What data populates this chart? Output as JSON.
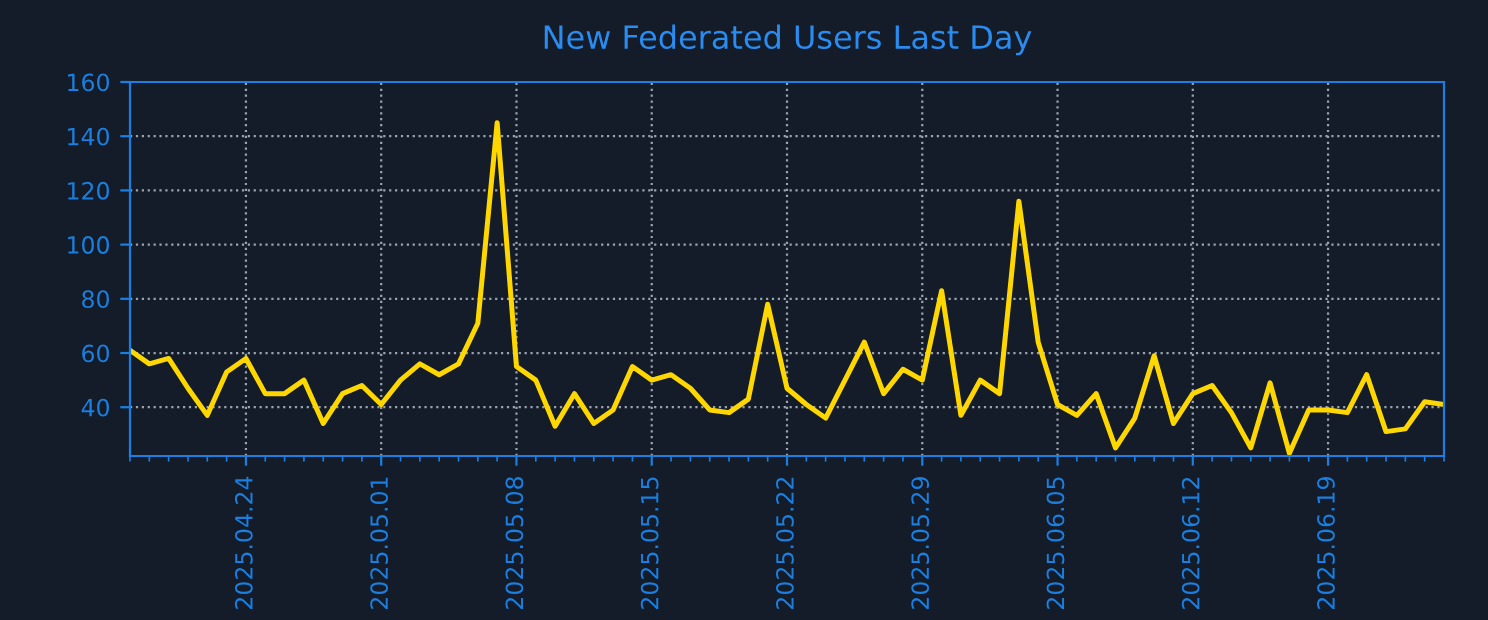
{
  "chart_data": {
    "type": "line",
    "title": "New Federated Users Last Day",
    "x": [
      "2025-04-18",
      "2025-04-19",
      "2025-04-20",
      "2025-04-21",
      "2025-04-22",
      "2025-04-23",
      "2025-04-24",
      "2025-04-25",
      "2025-04-26",
      "2025-04-27",
      "2025-04-28",
      "2025-04-29",
      "2025-04-30",
      "2025-05-01",
      "2025-05-02",
      "2025-05-03",
      "2025-05-04",
      "2025-05-05",
      "2025-05-06",
      "2025-05-07",
      "2025-05-08",
      "2025-05-09",
      "2025-05-10",
      "2025-05-11",
      "2025-05-12",
      "2025-05-13",
      "2025-05-14",
      "2025-05-15",
      "2025-05-16",
      "2025-05-17",
      "2025-05-18",
      "2025-05-19",
      "2025-05-20",
      "2025-05-21",
      "2025-05-22",
      "2025-05-23",
      "2025-05-24",
      "2025-05-25",
      "2025-05-26",
      "2025-05-27",
      "2025-05-28",
      "2025-05-29",
      "2025-05-30",
      "2025-05-31",
      "2025-06-01",
      "2025-06-02",
      "2025-06-03",
      "2025-06-04",
      "2025-06-05",
      "2025-06-06",
      "2025-06-07",
      "2025-06-08",
      "2025-06-09",
      "2025-06-10",
      "2025-06-11",
      "2025-06-12",
      "2025-06-13",
      "2025-06-14",
      "2025-06-15",
      "2025-06-16",
      "2025-06-17",
      "2025-06-18",
      "2025-06-19",
      "2025-06-20",
      "2025-06-21",
      "2025-06-22",
      "2025-06-23",
      "2025-06-24",
      "2025-06-25"
    ],
    "series": [
      {
        "color": "#ffd700",
        "values": [
          61,
          56,
          58,
          47,
          37,
          53,
          58,
          45,
          45,
          50,
          34,
          45,
          48,
          41,
          50,
          56,
          52,
          56,
          71,
          145,
          55,
          50,
          33,
          45,
          34,
          39,
          55,
          50,
          52,
          47,
          39,
          38,
          43,
          78,
          47,
          41,
          36,
          50,
          64,
          45,
          54,
          50,
          83,
          37,
          50,
          45,
          116,
          64,
          41,
          37,
          45,
          25,
          36,
          59,
          34,
          45,
          48,
          38,
          25,
          49,
          23,
          39,
          39,
          38,
          52,
          31,
          32,
          42,
          41
        ]
      }
    ],
    "xlim": [
      "2025-04-18",
      "2025-06-25"
    ],
    "xticks": [
      {
        "value": "2025-04-24",
        "label": "2025.04.24"
      },
      {
        "value": "2025-05-01",
        "label": "2025.05.01"
      },
      {
        "value": "2025-05-08",
        "label": "2025.05.08"
      },
      {
        "value": "2025-05-15",
        "label": "2025.05.15"
      },
      {
        "value": "2025-05-22",
        "label": "2025.05.22"
      },
      {
        "value": "2025-05-29",
        "label": "2025.05.29"
      },
      {
        "value": "2025-06-05",
        "label": "2025.06.05"
      },
      {
        "value": "2025-06-12",
        "label": "2025.06.12"
      },
      {
        "value": "2025-06-19",
        "label": "2025.06.19"
      }
    ],
    "ylim": [
      22,
      160
    ],
    "yticks": [
      40,
      60,
      80,
      100,
      120,
      140,
      160
    ],
    "grid": true,
    "line_style": "solid",
    "marker": "none"
  }
}
